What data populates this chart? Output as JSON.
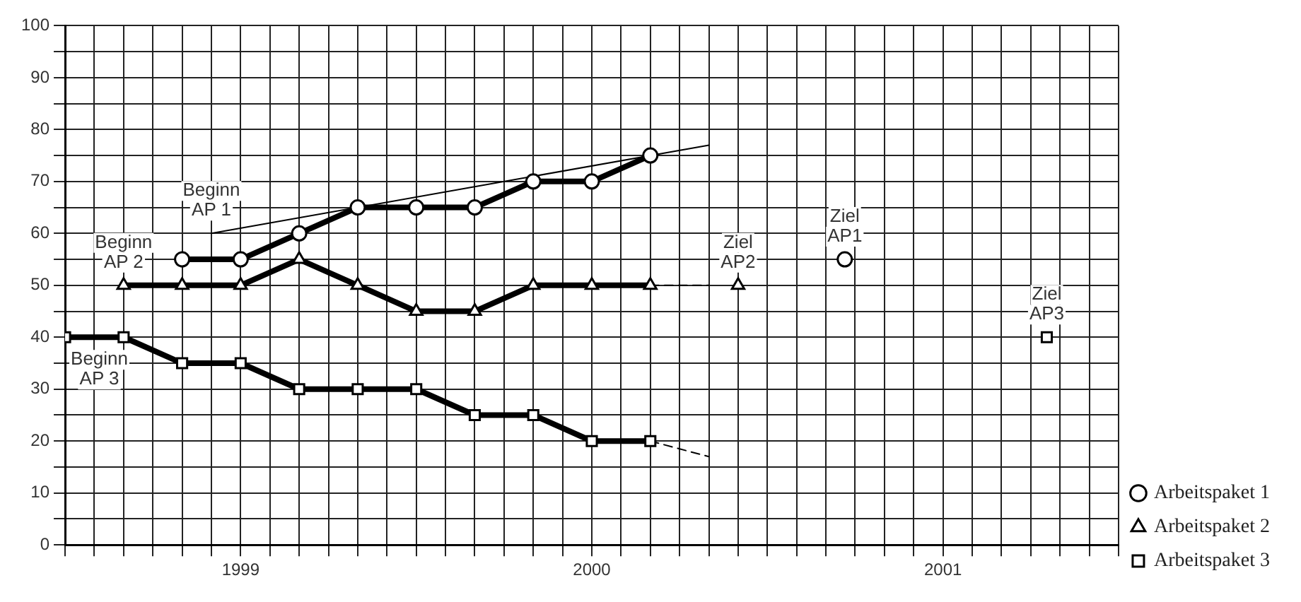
{
  "chart_data": {
    "type": "line",
    "xlim": [
      "1999-01",
      "2002-01"
    ],
    "ylim": [
      0,
      100
    ],
    "xticks": [
      {
        "value": "1999-01",
        "label": null
      },
      {
        "value": "1999-02",
        "label": null
      },
      {
        "value": "1999-03",
        "label": null
      },
      {
        "value": "1999-04",
        "label": null
      },
      {
        "value": "1999-05",
        "label": null
      },
      {
        "value": "1999-06",
        "label": null
      },
      {
        "value": "1999-07",
        "label": "1999"
      },
      {
        "value": "1999-08",
        "label": null
      },
      {
        "value": "1999-09",
        "label": null
      },
      {
        "value": "1999-10",
        "label": null
      },
      {
        "value": "1999-11",
        "label": null
      },
      {
        "value": "1999-12",
        "label": null
      },
      {
        "value": "2000-01",
        "label": null
      },
      {
        "value": "2000-02",
        "label": null
      },
      {
        "value": "2000-03",
        "label": null
      },
      {
        "value": "2000-04",
        "label": null
      },
      {
        "value": "2000-05",
        "label": null
      },
      {
        "value": "2000-06",
        "label": null
      },
      {
        "value": "2000-07",
        "label": "2000"
      },
      {
        "value": "2000-08",
        "label": null
      },
      {
        "value": "2000-09",
        "label": null
      },
      {
        "value": "2000-10",
        "label": null
      },
      {
        "value": "2000-11",
        "label": null
      },
      {
        "value": "2000-12",
        "label": null
      },
      {
        "value": "2001-01",
        "label": null
      },
      {
        "value": "2001-02",
        "label": null
      },
      {
        "value": "2001-03",
        "label": null
      },
      {
        "value": "2001-04",
        "label": null
      },
      {
        "value": "2001-05",
        "label": null
      },
      {
        "value": "2001-06",
        "label": null
      },
      {
        "value": "2001-07",
        "label": "2001"
      },
      {
        "value": "2001-08",
        "label": null
      },
      {
        "value": "2001-09",
        "label": null
      },
      {
        "value": "2001-10",
        "label": null
      },
      {
        "value": "2001-11",
        "label": null
      },
      {
        "value": "2001-12",
        "label": null
      },
      {
        "value": "2002-01",
        "label": null
      }
    ],
    "yticks": [
      0,
      {
        "value": 5,
        "label": null
      },
      10,
      {
        "value": 15,
        "label": null
      },
      20,
      {
        "value": 25,
        "label": null
      },
      30,
      {
        "value": 35,
        "label": null
      },
      40,
      {
        "value": 45,
        "label": null
      },
      50,
      {
        "value": 55,
        "label": null
      },
      60,
      {
        "value": 65,
        "label": null
      },
      70,
      {
        "value": 75,
        "label": null
      },
      80,
      {
        "value": 85,
        "label": null
      },
      90,
      {
        "value": 95,
        "label": null
      },
      100
    ],
    "grid": true,
    "legend": "bottom right",
    "series": [
      {
        "name": "Arbeitspaket 1",
        "color": "#000000",
        "marker": "circle",
        "x": [
          "1999-05",
          "1999-07",
          "1999-09",
          "1999-11",
          "2000-01",
          "2000-03",
          "2000-05",
          "2000-07",
          "2000-09"
        ],
        "values": [
          55,
          55,
          60,
          65,
          65,
          65,
          70,
          70,
          75
        ]
      },
      {
        "name": "Arbeitspaket 2",
        "color": "#000000",
        "marker": "triangle",
        "x": [
          "1999-03",
          "1999-05",
          "1999-07",
          "1999-09",
          "1999-11",
          "2000-01",
          "2000-03",
          "2000-05",
          "2000-07",
          "2000-09"
        ],
        "values": [
          50,
          50,
          50,
          55,
          50,
          45,
          45,
          50,
          50,
          50
        ]
      },
      {
        "name": "Arbeitspaket 3",
        "color": "#000000",
        "marker": "square",
        "x": [
          "1999-01",
          "1999-03",
          "1999-05",
          "1999-07",
          "1999-09",
          "1999-11",
          "2000-01",
          "2000-03",
          "2000-05",
          "2000-07",
          "2000-09"
        ],
        "values": [
          40,
          40,
          35,
          35,
          30,
          30,
          30,
          25,
          25,
          20,
          20
        ]
      },
      {
        "type": "line",
        "color": "#000000",
        "marker": "none",
        "line_style": "solid",
        "x": [
          "1999-06",
          "2000-11"
        ],
        "values": [
          60,
          77
        ]
      },
      {
        "type": "line",
        "color": "#000000",
        "marker": "none",
        "line_style": "dashed",
        "x": [
          "2000-09",
          "2000-11"
        ],
        "values": [
          50,
          50
        ]
      },
      {
        "type": "line",
        "color": "#000000",
        "marker": "none",
        "line_style": "dashed",
        "x": [
          "2000-09",
          "2000-11"
        ],
        "values": [
          20,
          17
        ]
      },
      {
        "type": "scatter",
        "color": "#000000",
        "marker": "circle",
        "x": [
          "2001-03-21"
        ],
        "values": [
          55
        ]
      },
      {
        "type": "scatter",
        "color": "#000000",
        "marker": "triangle",
        "x": [
          "2000-12"
        ],
        "values": [
          50
        ]
      },
      {
        "type": "scatter",
        "color": "#000000",
        "marker": "square",
        "x": [
          "2001-10-18"
        ],
        "values": [
          40
        ]
      }
    ],
    "annotations": [
      {
        "text": "Beginn\nAP 1",
        "x": "1999-06",
        "y": 60
      },
      {
        "text": "Beginn\nAP 2",
        "x": "1999-03",
        "y": 50
      },
      {
        "text": "Beginn\nAP 3",
        "x": "1999-01",
        "y": 40
      },
      {
        "text": "Ziel\nAP2",
        "x": "2000-12",
        "y": 50
      },
      {
        "text": "Ziel\nAP1",
        "x": "2001-03-21",
        "y": 55
      },
      {
        "text": "Ziel\nAP3",
        "x": "2001-10-18",
        "y": 40
      }
    ]
  }
}
